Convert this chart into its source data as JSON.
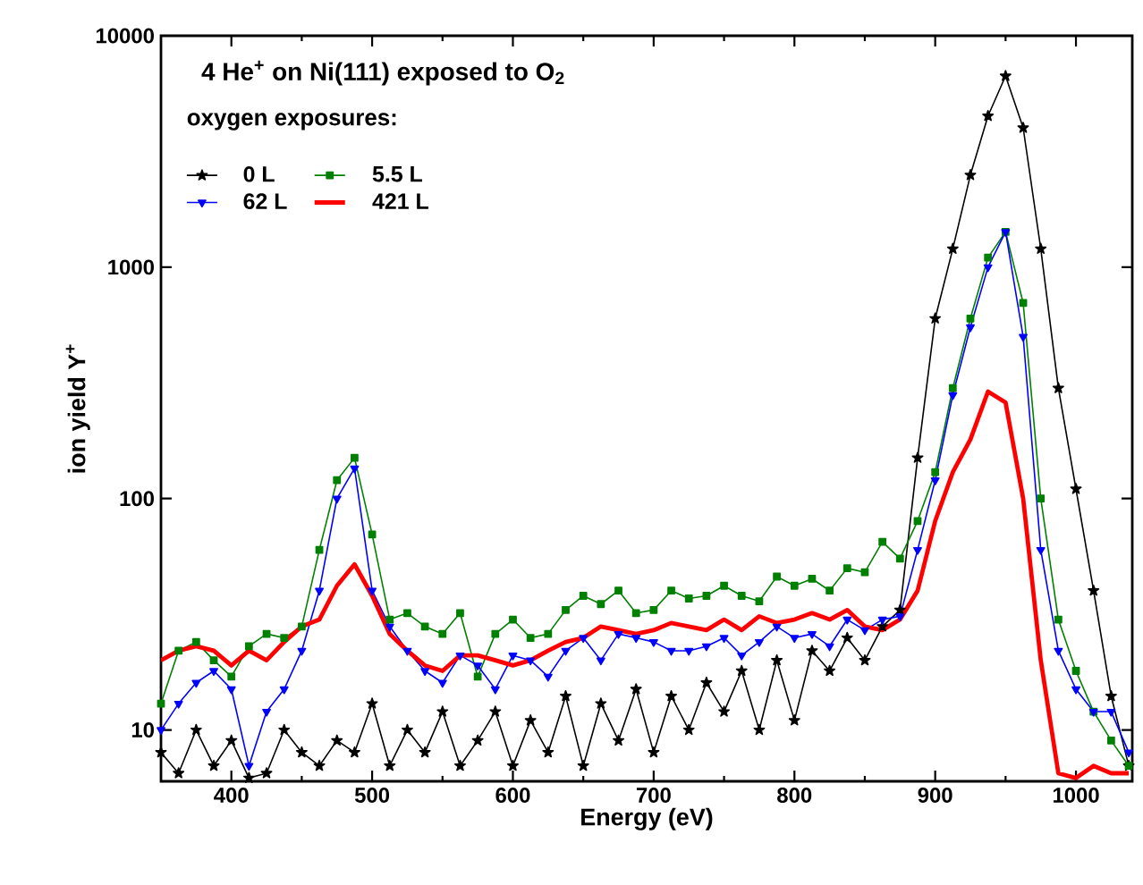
{
  "chart_data": {
    "type": "line",
    "title": "4 He$^{+}$ on Ni(111) exposed to O$_{2}$",
    "legend_title": "oxygen exposures:",
    "xlabel": "Energy (eV)",
    "ylabel": "ion yield Y$^{+}$",
    "log": "y",
    "legend": "top left",
    "xlim": [
      350,
      1040
    ],
    "ylim": [
      6,
      10000
    ],
    "xticks": [
      400,
      500,
      600,
      700,
      800,
      900,
      1000
    ],
    "yticks": [
      10,
      100,
      1000,
      10000
    ],
    "x": [
      350,
      362.5,
      375,
      387.5,
      400,
      412.5,
      425,
      437.5,
      450,
      462.5,
      475,
      487.5,
      500,
      512.5,
      525,
      537.5,
      550,
      562.5,
      575,
      587.5,
      600,
      612.5,
      625,
      637.5,
      650,
      662.5,
      675,
      687.5,
      700,
      712.5,
      725,
      737.5,
      750,
      762.5,
      775,
      787.5,
      800,
      812.5,
      825,
      837.5,
      850,
      862.5,
      875,
      887.5,
      900,
      912.5,
      925,
      937.5,
      950,
      962.5,
      975,
      987.5,
      1000,
      1012.5,
      1025,
      1037.5
    ],
    "series": [
      {
        "name": "0 L",
        "color": "#000000",
        "marker": "star",
        "values": [
          8,
          6.5,
          10,
          7,
          9,
          6.2,
          6.5,
          10,
          8,
          7,
          9,
          8,
          13,
          7,
          10,
          8,
          12,
          7,
          9,
          12,
          7,
          11,
          8,
          14,
          7,
          13,
          9,
          15,
          8,
          14,
          10,
          16,
          12,
          18,
          10,
          20,
          11,
          22,
          18,
          25,
          20,
          28,
          33,
          150,
          600,
          1200,
          2500,
          4500,
          6700,
          4000,
          1200,
          300,
          110,
          40,
          14,
          7
        ]
      },
      {
        "name": "5.5 L",
        "color": "#008000",
        "marker": "square",
        "values": [
          13,
          22,
          24,
          20,
          17,
          23,
          26,
          25,
          28,
          60,
          120,
          150,
          70,
          30,
          32,
          28,
          26,
          32,
          17,
          26,
          30,
          25,
          26,
          33,
          38,
          35,
          40,
          32,
          33,
          40,
          37,
          38,
          42,
          38,
          36,
          46,
          42,
          45,
          40,
          50,
          48,
          65,
          55,
          80,
          130,
          300,
          600,
          1100,
          1420,
          700,
          100,
          30,
          18,
          12,
          9,
          7
        ]
      },
      {
        "name": "62 L",
        "color": "#0000ff",
        "marker": "triangle",
        "values": [
          10,
          13,
          16,
          18,
          15,
          7,
          12,
          15,
          22,
          40,
          100,
          135,
          40,
          28,
          22,
          18,
          16,
          21,
          19,
          15,
          21,
          20,
          17,
          22,
          25,
          20,
          26,
          25,
          24,
          22,
          22,
          23,
          25,
          21,
          24,
          28,
          25,
          26,
          23,
          30,
          27,
          30,
          31,
          60,
          120,
          280,
          550,
          1000,
          1420,
          500,
          60,
          22,
          15,
          12,
          12,
          8
        ]
      },
      {
        "name": "421 L",
        "color": "#ff0000",
        "marker": "none",
        "values": [
          20,
          22,
          23,
          22,
          19,
          22,
          20,
          24,
          28,
          30,
          42,
          52,
          38,
          26,
          22,
          19,
          18,
          21,
          21,
          20,
          19,
          20,
          22,
          24,
          25,
          28,
          27,
          26,
          27,
          29,
          28,
          27,
          30,
          27,
          31,
          29,
          30,
          32,
          30,
          33,
          28,
          27,
          30,
          40,
          80,
          130,
          180,
          290,
          260,
          100,
          20,
          6.5,
          6.2,
          7,
          6.5,
          6.5
        ]
      }
    ]
  }
}
